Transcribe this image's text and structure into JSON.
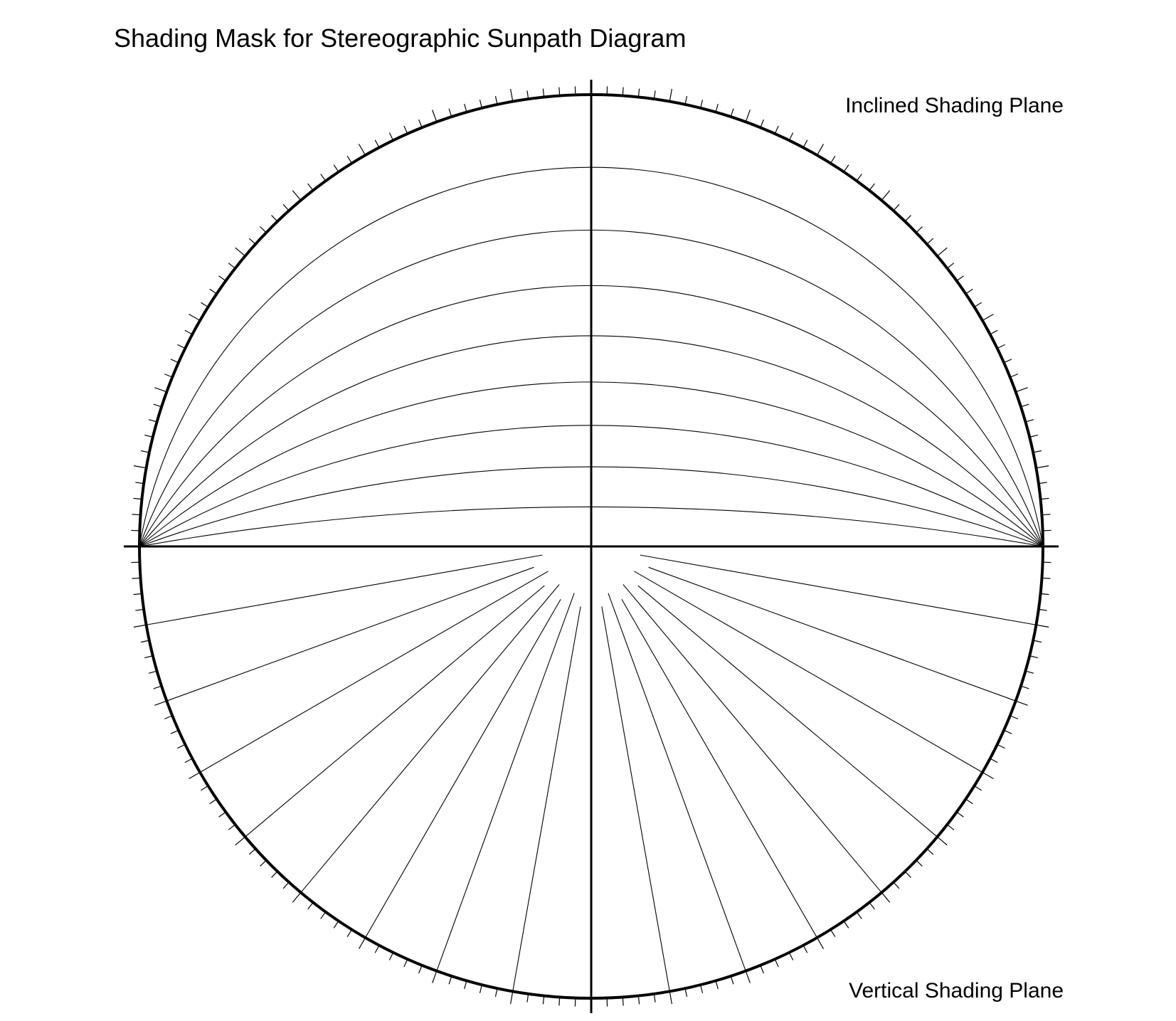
{
  "title": "Shading Mask for Stereographic Sunpath Diagram",
  "labels": {
    "inclined": "Inclined Shading Plane",
    "vertical": "Vertical Shading Plane"
  },
  "protractor": {
    "tick_step_deg": 2,
    "major_every_deg": 10
  },
  "inclined_planes": {
    "angles_deg": [
      10,
      20,
      30,
      40,
      50,
      60,
      70,
      80
    ]
  },
  "vertical_planes": {
    "step_deg": 10
  },
  "colors": {
    "line": "#000000",
    "background": "#ffffff"
  }
}
